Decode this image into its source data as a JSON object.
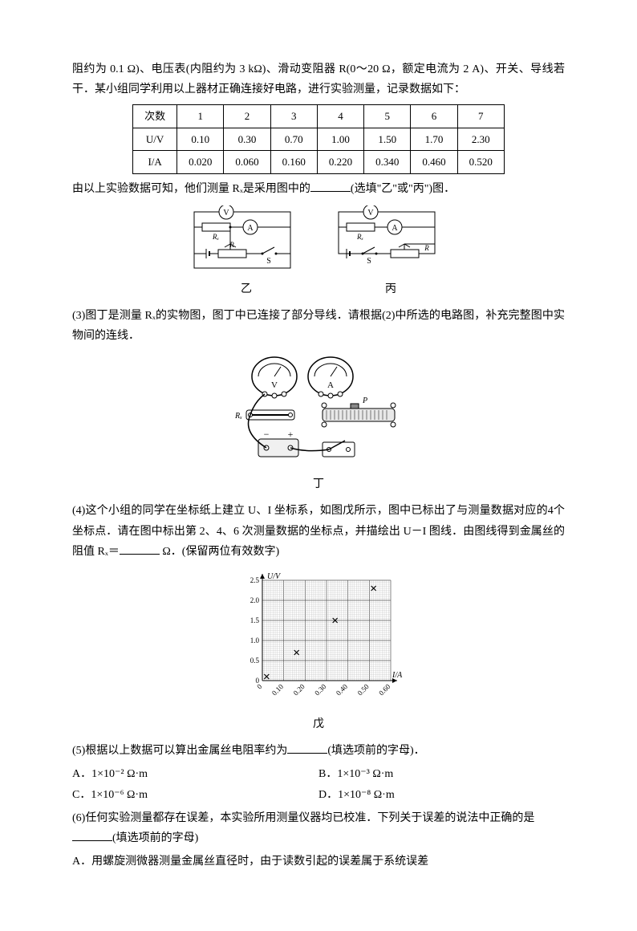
{
  "intro1": "阻约为 0.1 Ω)、电压表(内阻约为 3 kΩ)、滑动变阻器 R(0～20 Ω，额定电流为 2 A)、开关、导线若干．某小组同学利用以上器材正确连接好电路，进行实验测量，记录数据如下：",
  "table": {
    "headers": [
      "次数",
      "1",
      "2",
      "3",
      "4",
      "5",
      "6",
      "7"
    ],
    "rows": [
      [
        "U/V",
        "0.10",
        "0.30",
        "0.70",
        "1.00",
        "1.50",
        "1.70",
        "2.30"
      ],
      [
        "I/A",
        "0.020",
        "0.060",
        "0.160",
        "0.220",
        "0.340",
        "0.460",
        "0.520"
      ]
    ]
  },
  "q_after_table": "由以上实验数据可知，他们测量 Rₓ是采用图中的",
  "q_after_table_suffix": "(选填\"乙\"或\"丙\")图．",
  "fig_yi": "乙",
  "fig_bing": "丙",
  "q3": "(3)图丁是测量 Rₓ的实物图，图丁中已连接了部分导线．请根据(2)中所选的电路图，补充完整图中实物间的连线．",
  "fig_ding": "丁",
  "q4_part1": "(4)这个小组的同学在坐标纸上建立 U、I 坐标系，如图戊所示，图中已标出了与测量数据对应的4个坐标点．请在图中标出第 2、4、6 次测量数据的坐标点，并描绘出 U－I 图线．由图线得到金属丝的阻值 Rₓ＝",
  "q4_part2": " Ω．(保留两位有效数字)",
  "fig_wu": "戊",
  "chart": {
    "type": "scatter",
    "xlabel": "I/A",
    "ylabel": "U/V",
    "xlim": [
      0,
      0.6
    ],
    "ylim": [
      0,
      2.5
    ],
    "xticks": [
      "0",
      "0.10",
      "0.20",
      "0.30",
      "0.40",
      "0.50",
      "0.60"
    ],
    "yticks": [
      "0",
      "0.5",
      "1.0",
      "1.5",
      "2.0",
      "2.5"
    ],
    "points": [
      {
        "x": 0.02,
        "y": 0.1
      },
      {
        "x": 0.16,
        "y": 0.7
      },
      {
        "x": 0.34,
        "y": 1.5
      },
      {
        "x": 0.52,
        "y": 2.3
      }
    ],
    "grid_color": "#888888",
    "point_color": "#000000",
    "background_color": "#ffffff"
  },
  "q5": "(5)根据以上数据可以算出金属丝电阻率约为",
  "q5_suffix": "(填选项前的字母)．",
  "options5": {
    "A": "A．1×10⁻² Ω·m",
    "B": "B．1×10⁻³ Ω·m",
    "C": "C．1×10⁻⁶ Ω·m",
    "D": "D．1×10⁻⁸ Ω·m"
  },
  "q6": "(6)任何实验测量都存在误差，本实验所用测量仪器均已校准．下列关于误差的说法中正确的是",
  "q6_suffix": "(填选项前的字母)",
  "option6A": "A．用螺旋测微器测量金属丝直径时，由于读数引起的误差属于系统误差",
  "meter_labels": {
    "V": "V",
    "A": "A",
    "R": "R",
    "Rx": "Rₓ",
    "S": "S",
    "P": "P"
  }
}
